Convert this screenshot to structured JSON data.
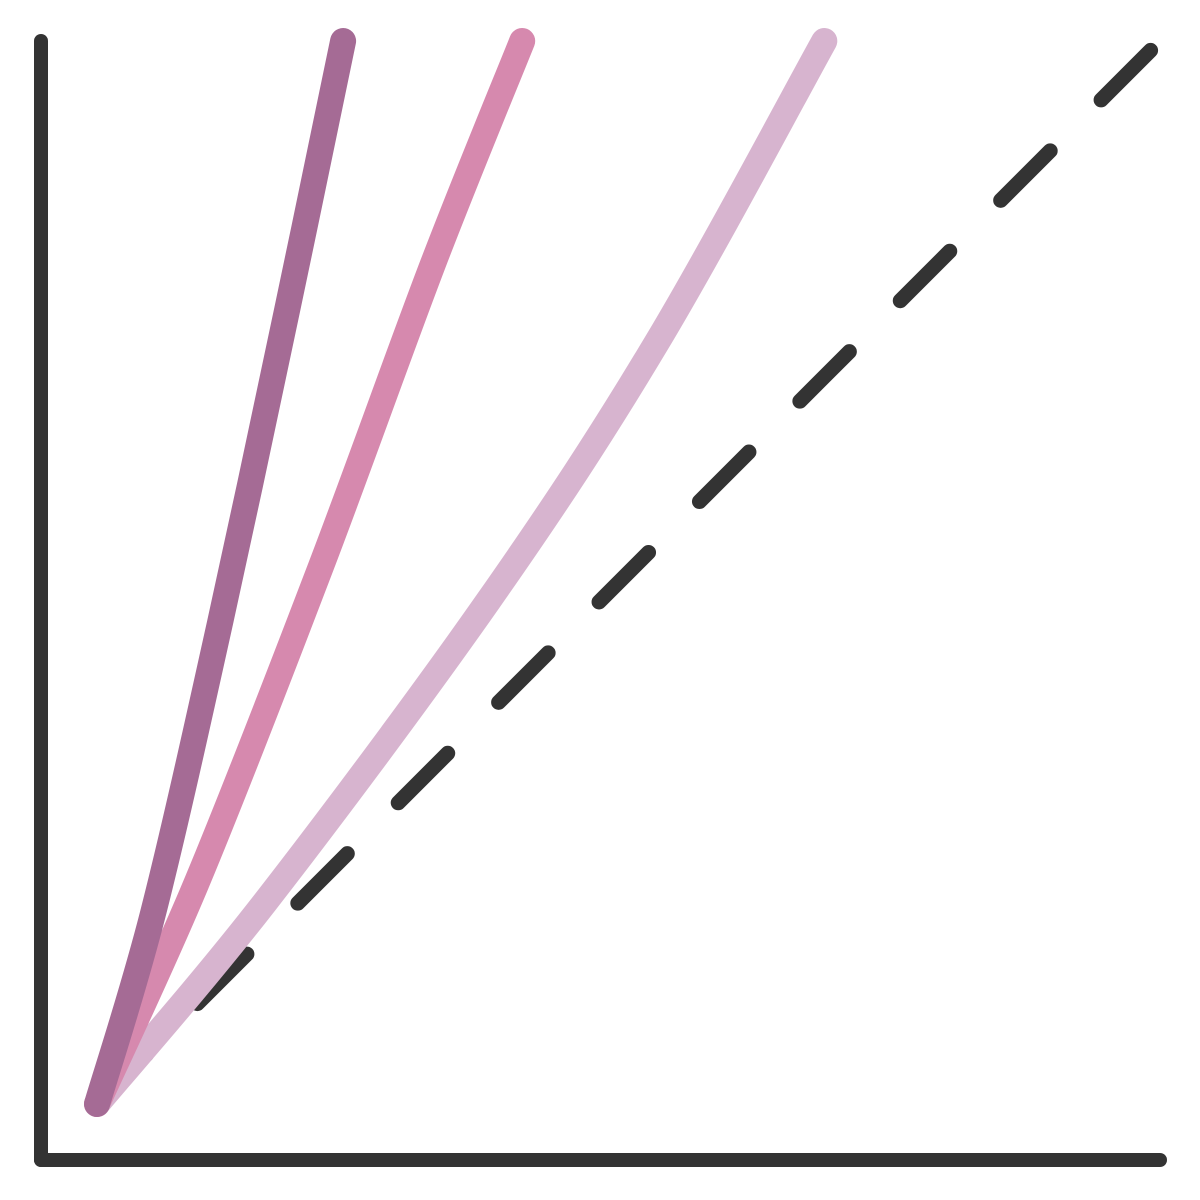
{
  "chart_data": {
    "type": "line",
    "title": "",
    "xlabel": "",
    "ylabel": "",
    "xlim": [
      0,
      1
    ],
    "ylim": [
      0,
      1
    ],
    "grid": false,
    "legend": "none",
    "axis_color": "#333333",
    "series": [
      {
        "color": "#d7b4cf",
        "style": "solid",
        "points": [
          [
            0.05,
            0.05
          ],
          [
            0.2,
            0.23
          ],
          [
            0.4,
            0.5
          ],
          [
            0.55,
            0.73
          ],
          [
            0.7,
            1.0
          ]
        ]
      },
      {
        "color": "#d689ae",
        "style": "solid",
        "points": [
          [
            0.05,
            0.05
          ],
          [
            0.14,
            0.25
          ],
          [
            0.25,
            0.53
          ],
          [
            0.35,
            0.8
          ],
          [
            0.43,
            1.0
          ]
        ]
      },
      {
        "color": "#a56b95",
        "style": "solid",
        "points": [
          [
            0.05,
            0.05
          ],
          [
            0.1,
            0.22
          ],
          [
            0.16,
            0.48
          ],
          [
            0.22,
            0.76
          ],
          [
            0.27,
            1.0
          ]
        ]
      },
      {
        "color": "#333333",
        "style": "dashed",
        "points": [
          [
            0.05,
            0.05
          ],
          [
            1.0,
            1.0
          ]
        ]
      }
    ]
  }
}
